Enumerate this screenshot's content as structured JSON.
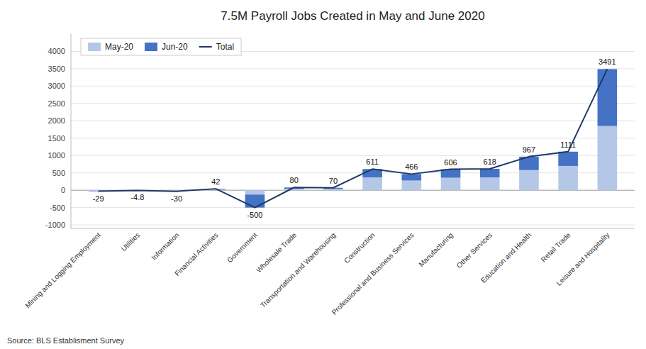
{
  "chart_data": {
    "type": "bar",
    "stacked": true,
    "title": "7.5M Payroll Jobs Created in May and June 2020",
    "source": "Source: BLS Establisment Survey",
    "categories": [
      "Mining and Logging Employment",
      "Utilities",
      "Information",
      "Financial Activities",
      "Government",
      "Wholesale Trade",
      "Transportation and Warehousing",
      "Construction",
      "Professional and Business Services",
      "Manufacturing",
      "Other Services",
      "Education and Health",
      "Retail Trade",
      "Leisure and Hospitality"
    ],
    "series": [
      {
        "name": "May-20",
        "type": "bar",
        "color": "#b4c7e7",
        "values": [
          -16,
          -2.4,
          -20,
          25,
          -125,
          45,
          38,
          370,
          280,
          360,
          370,
          580,
          700,
          1850
        ]
      },
      {
        "name": "Jun-20",
        "type": "bar",
        "color": "#4472c4",
        "values": [
          -13,
          -2.4,
          -10,
          17,
          -375,
          35,
          32,
          241,
          186,
          246,
          248,
          387,
          411,
          1641
        ]
      },
      {
        "name": "Total",
        "type": "line",
        "color": "#203864",
        "data_labels": true,
        "values": [
          -29,
          -4.8,
          -30,
          42,
          -500,
          80,
          70,
          611,
          466,
          606,
          618,
          967,
          1111,
          3491
        ]
      }
    ],
    "ylim": [
      -1100,
      4500
    ],
    "yticks": [
      -1000,
      -500,
      0,
      500,
      1000,
      1500,
      2000,
      2500,
      3000,
      3500,
      4000
    ],
    "grid": true,
    "legend": "upper left"
  }
}
